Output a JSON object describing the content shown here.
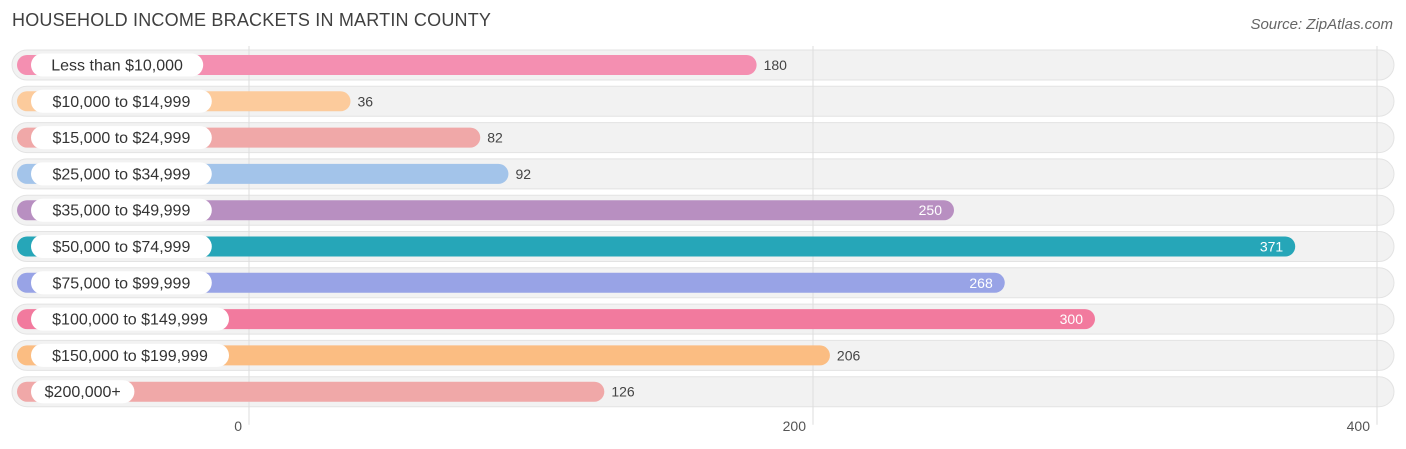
{
  "header": {
    "title": "HOUSEHOLD INCOME BRACKETS IN MARTIN COUNTY",
    "source": "Source: ZipAtlas.com"
  },
  "chart_data": {
    "type": "bar",
    "orientation": "horizontal",
    "title": "HOUSEHOLD INCOME BRACKETS IN MARTIN COUNTY",
    "xlabel": "",
    "ylabel": "",
    "xlim": [
      0,
      400
    ],
    "grid": true,
    "categories": [
      "Less than $10,000",
      "$10,000 to $14,999",
      "$15,000 to $24,999",
      "$25,000 to $34,999",
      "$35,000 to $49,999",
      "$50,000 to $74,999",
      "$75,000 to $99,999",
      "$100,000 to $149,999",
      "$150,000 to $199,999",
      "$200,000+"
    ],
    "values": [
      180,
      36,
      82,
      92,
      250,
      371,
      268,
      300,
      206,
      126
    ],
    "value_labels": [
      "180",
      "36",
      "82",
      "92",
      "250",
      "371",
      "268",
      "300",
      "206",
      "126"
    ],
    "colors": [
      "#f48fb1",
      "#fccb9c",
      "#f0a8a8",
      "#a3c4ea",
      "#b88fc1",
      "#26a6b8",
      "#98a3e6",
      "#f27a9e",
      "#fbbd82",
      "#f0a8a8"
    ],
    "ticks": [
      0,
      200,
      400
    ],
    "tick_labels": [
      "0",
      "200",
      "400"
    ]
  }
}
